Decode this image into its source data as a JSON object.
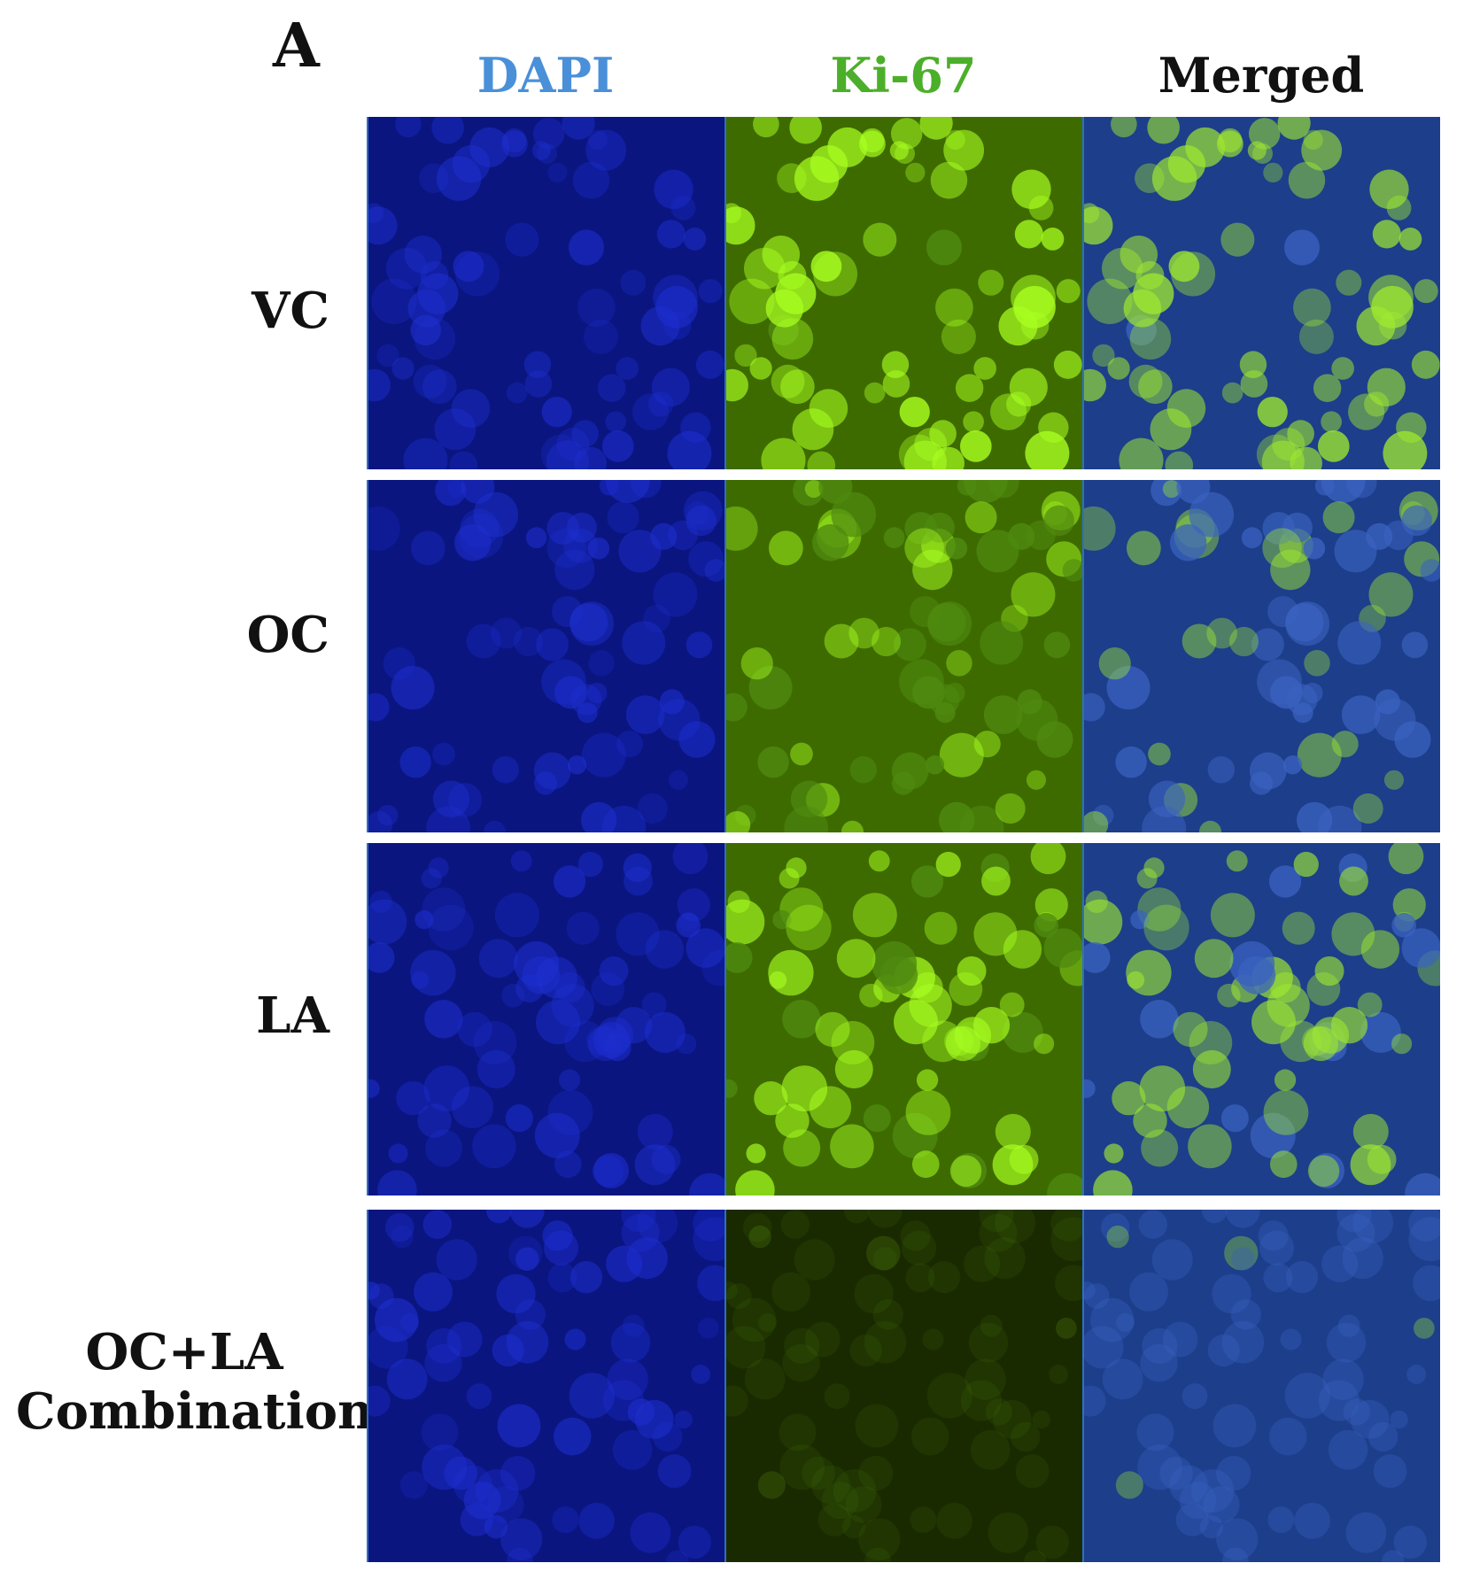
{
  "panel_letter": "A",
  "column_headers": [
    {
      "label": "DAPI",
      "color": "#4a90d9"
    },
    {
      "label": "Ki-67",
      "color": "#4caf2a"
    },
    {
      "label": "Merged",
      "color": "#111111"
    }
  ],
  "rows": [
    {
      "label": "VC",
      "ki67_intensity": 0.95
    },
    {
      "label": "OC",
      "ki67_intensity": 0.35
    },
    {
      "label": "LA",
      "ki67_intensity": 0.75
    },
    {
      "label_line1": "OC+LA",
      "label_line2": "Combination",
      "ki67_intensity": 0.05
    }
  ],
  "colors": {
    "dapi_bg": "#0a1580",
    "ki67_bg": "#3d6b00",
    "merged_bg": "#1d3e8a",
    "border": "#2f6fc4"
  }
}
